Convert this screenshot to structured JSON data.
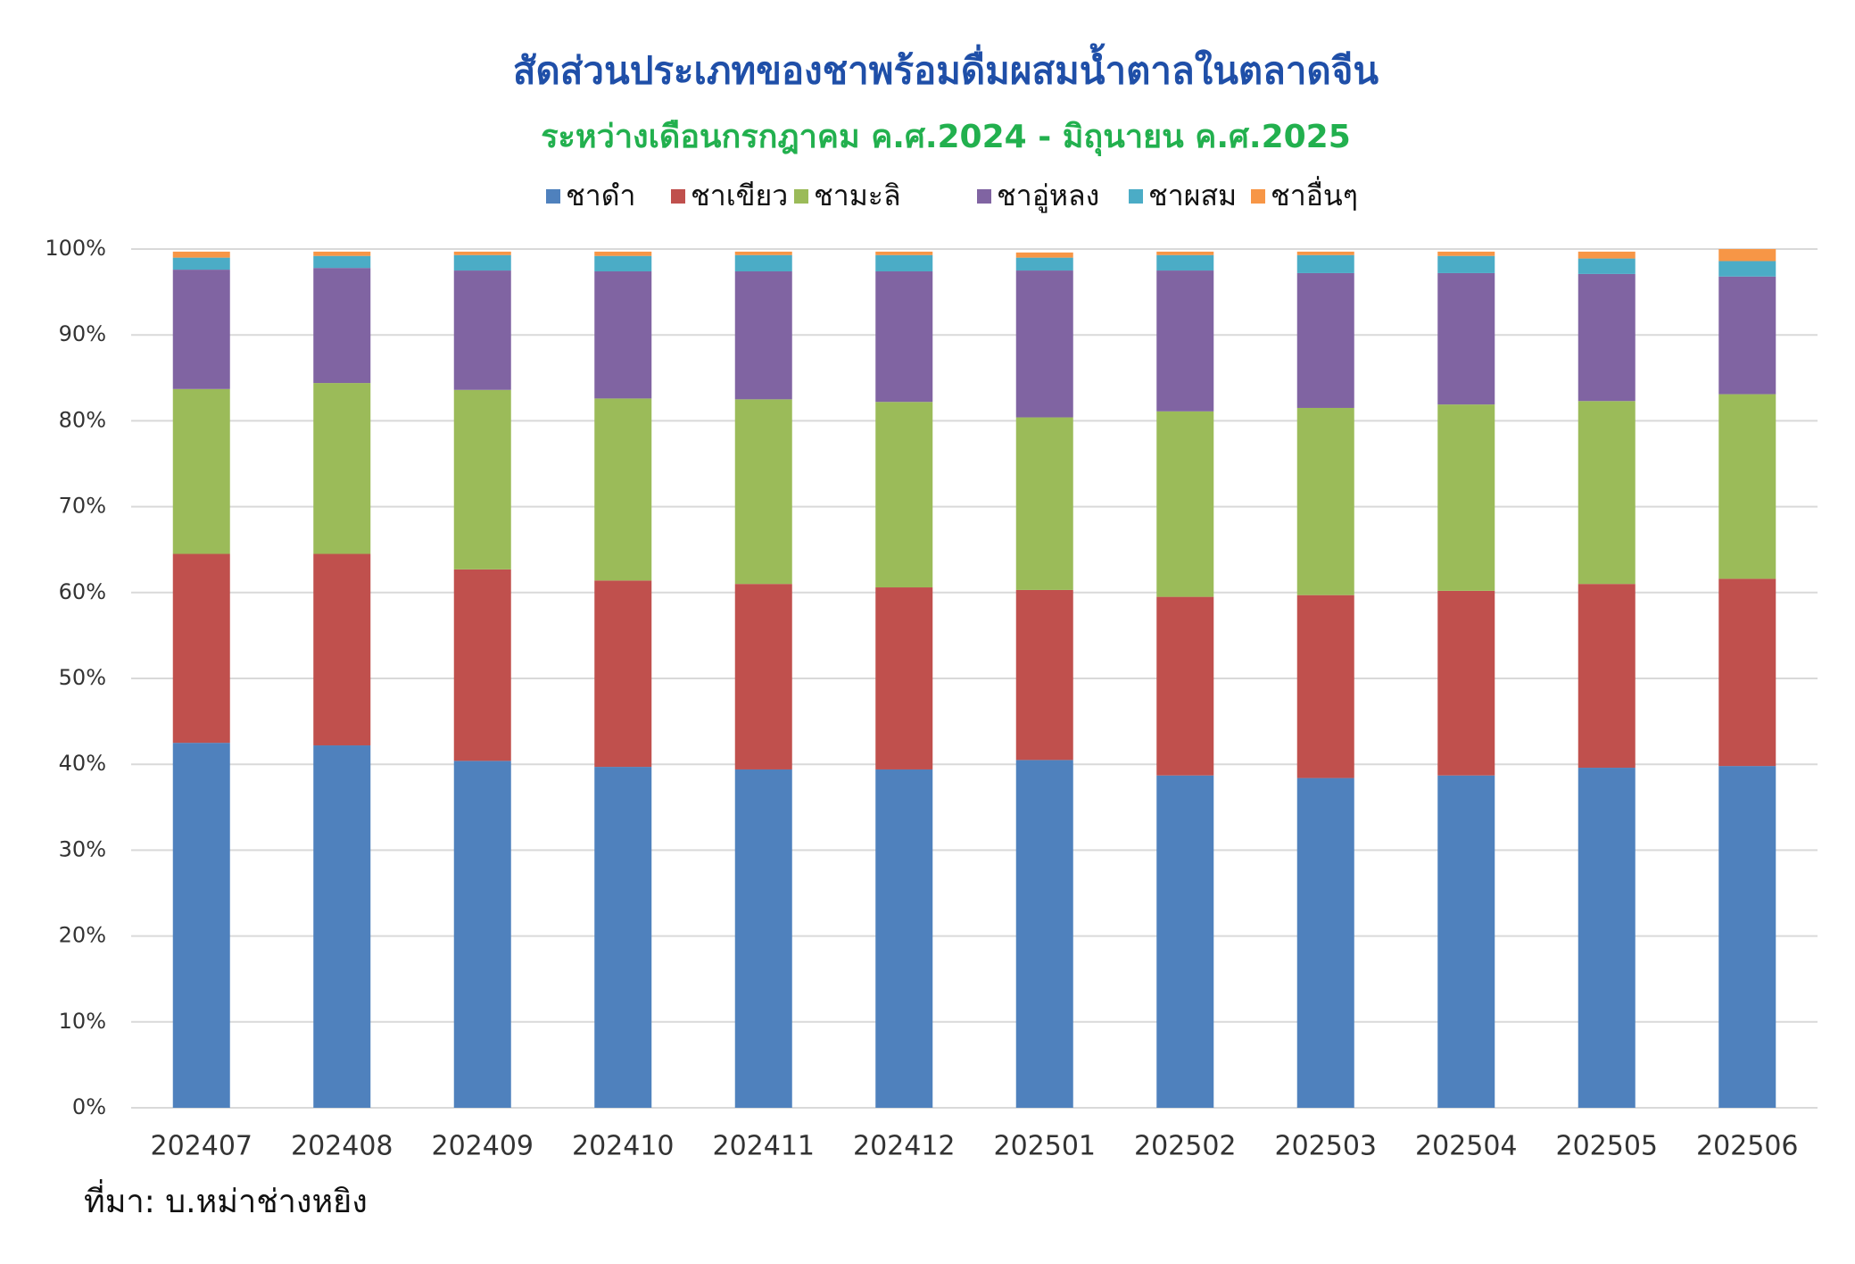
{
  "chart_data": {
    "type": "stacked_bar",
    "title": "สัดส่วนประเภทของชาพร้อมดื่มผสมน้ำตาลในตลาดจีน",
    "subtitle": "ระหว่างเดือนกรกฎาคม ค.ศ.2024 - มิถุนายน ค.ศ.2025",
    "source": "ที่มา: บ.หม่าช่างหยิง",
    "categories": [
      "202407",
      "202408",
      "202409",
      "202410",
      "202411",
      "202412",
      "202501",
      "202502",
      "202503",
      "202504",
      "202505",
      "202506"
    ],
    "series": [
      {
        "name": "ชาดำ",
        "color": "#4f81bd",
        "values": [
          42.5,
          42.2,
          40.4,
          39.7,
          39.4,
          39.4,
          40.5,
          38.7,
          38.4,
          38.7,
          39.6,
          39.8
        ]
      },
      {
        "name": "ชาเขียว",
        "color": "#c0504d",
        "values": [
          22.0,
          22.3,
          22.3,
          21.7,
          21.6,
          21.2,
          19.8,
          20.8,
          21.3,
          21.5,
          21.4,
          21.8
        ]
      },
      {
        "name": "ชามะลิ",
        "color": "#9bbb59",
        "values": [
          19.2,
          19.9,
          20.9,
          21.2,
          21.5,
          21.6,
          20.1,
          21.6,
          21.8,
          21.7,
          21.3,
          21.5
        ]
      },
      {
        "name": "ชาอู่หลง",
        "color": "#8064a2",
        "values": [
          13.9,
          13.4,
          13.9,
          14.8,
          14.9,
          15.2,
          17.1,
          16.4,
          15.7,
          15.3,
          14.8,
          13.7
        ]
      },
      {
        "name": "ชาผสม",
        "color": "#4bacc6",
        "values": [
          1.4,
          1.4,
          1.8,
          1.8,
          1.9,
          1.9,
          1.5,
          1.8,
          2.1,
          2.0,
          1.8,
          1.8
        ]
      },
      {
        "name": "ชาอื่นๆ",
        "color": "#f79646",
        "values": [
          0.7,
          0.5,
          0.4,
          0.5,
          0.4,
          0.4,
          0.6,
          0.4,
          0.4,
          0.5,
          0.8,
          1.4
        ]
      }
    ],
    "ylim": [
      0,
      100
    ],
    "yticks": [
      {
        "value": 0,
        "label": "0%"
      },
      {
        "value": 10,
        "label": "10%"
      },
      {
        "value": 20,
        "label": "20%"
      },
      {
        "value": 30,
        "label": "30%"
      },
      {
        "value": 40,
        "label": "40%"
      },
      {
        "value": 50,
        "label": "50%"
      },
      {
        "value": 60,
        "label": "60%"
      },
      {
        "value": 70,
        "label": "70%"
      },
      {
        "value": 80,
        "label": "80%"
      },
      {
        "value": 90,
        "label": "90%"
      },
      {
        "value": 100,
        "label": "100%"
      }
    ],
    "grid": true
  }
}
